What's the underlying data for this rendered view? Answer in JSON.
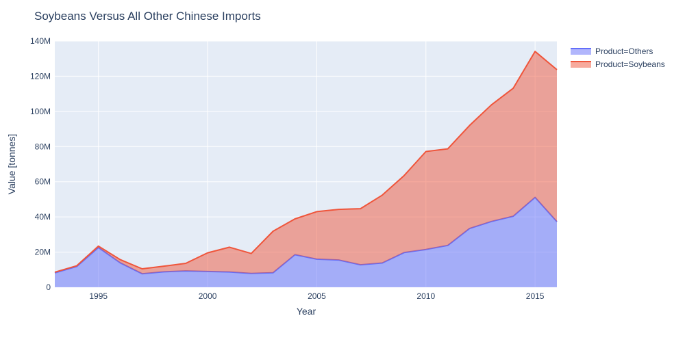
{
  "chart_data": {
    "type": "area",
    "stacked": true,
    "title": "Soybeans Versus All Other Chinese Imports",
    "xlabel": "Year",
    "ylabel": "Value [tonnes]",
    "xlim": [
      1993,
      2016
    ],
    "ylim": [
      0,
      140000000
    ],
    "x_ticks": [
      1995,
      2000,
      2005,
      2010,
      2015
    ],
    "x_tick_labels": [
      "1995",
      "2000",
      "2005",
      "2010",
      "2015"
    ],
    "y_ticks": [
      0,
      20000000,
      40000000,
      60000000,
      80000000,
      100000000,
      120000000,
      140000000
    ],
    "y_tick_labels": [
      "0",
      "20M",
      "40M",
      "60M",
      "80M",
      "100M",
      "120M",
      "140M"
    ],
    "grid": true,
    "legend_position": "top-right",
    "x": [
      1993,
      1994,
      1995,
      1996,
      1997,
      1998,
      1999,
      2000,
      2001,
      2002,
      2003,
      2004,
      2005,
      2006,
      2007,
      2008,
      2009,
      2010,
      2011,
      2012,
      2013,
      2014,
      2015,
      2016
    ],
    "series": [
      {
        "name": "Product=Others",
        "line_color": "#636efa",
        "fill_color": "rgba(99,110,250,0.5)",
        "values": [
          8200000,
          11800000,
          22600000,
          13900000,
          7700000,
          8800000,
          9300000,
          9000000,
          8700000,
          7900000,
          8300000,
          18500000,
          16000000,
          15500000,
          12800000,
          13800000,
          19700000,
          21500000,
          23800000,
          33400000,
          37400000,
          40400000,
          51100000,
          37300000
        ]
      },
      {
        "name": "Product=Soybeans",
        "line_color": "#ef553b",
        "fill_color": "rgba(239,85,59,0.5)",
        "values": [
          400000,
          400000,
          800000,
          1800000,
          2800000,
          3200000,
          4300000,
          10600000,
          14100000,
          11300000,
          23600000,
          20400000,
          27000000,
          28800000,
          31900000,
          38600000,
          43800000,
          55700000,
          54900000,
          58600000,
          66300000,
          72800000,
          83000000,
          86400000
        ]
      }
    ]
  }
}
